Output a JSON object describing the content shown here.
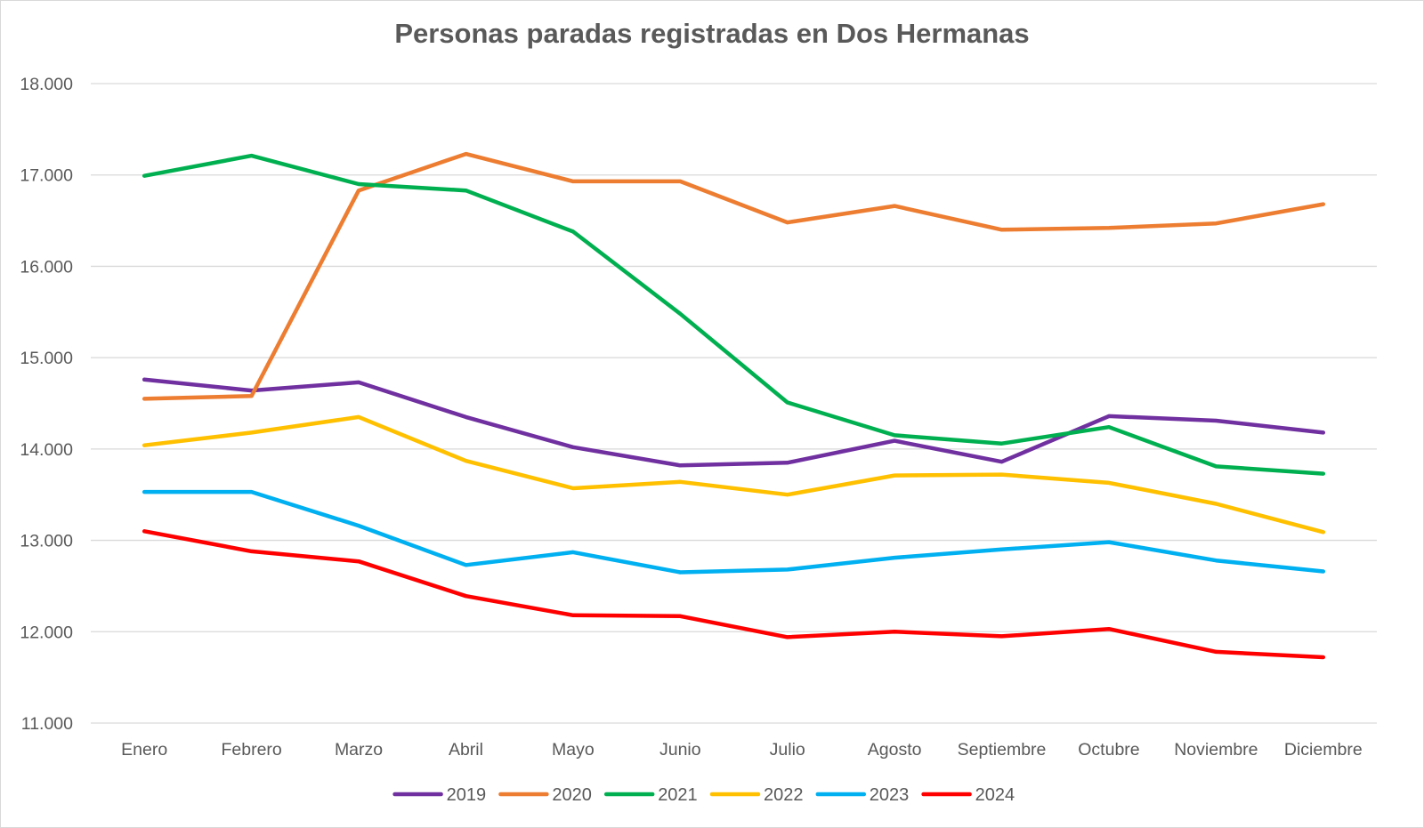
{
  "chart_data": {
    "type": "line",
    "title": "Personas paradas registradas en Dos Hermanas",
    "xlabel": "",
    "ylabel": "",
    "categories": [
      "Enero",
      "Febrero",
      "Marzo",
      "Abril",
      "Mayo",
      "Junio",
      "Julio",
      "Agosto",
      "Septiembre",
      "Octubre",
      "Noviembre",
      "Diciembre"
    ],
    "ylim": [
      11000,
      18000
    ],
    "yticks": [
      11000,
      12000,
      13000,
      14000,
      15000,
      16000,
      17000,
      18000
    ],
    "ytick_labels": [
      "11.000",
      "12.000",
      "13.000",
      "14.000",
      "15.000",
      "16.000",
      "17.000",
      "18.000"
    ],
    "grid": true,
    "legend_position": "bottom",
    "series": [
      {
        "name": "2019",
        "color": "#7030a0",
        "values": [
          14760,
          14640,
          14730,
          14350,
          14020,
          13820,
          13850,
          14090,
          13860,
          14360,
          14310,
          14180
        ]
      },
      {
        "name": "2020",
        "color": "#ed7d31",
        "values": [
          14550,
          14580,
          16830,
          17230,
          16930,
          16930,
          16480,
          16660,
          16400,
          16420,
          16470,
          16680
        ]
      },
      {
        "name": "2021",
        "color": "#00b050",
        "values": [
          16990,
          17210,
          16900,
          16830,
          16380,
          15480,
          14510,
          14150,
          14060,
          14240,
          13810,
          13730
        ]
      },
      {
        "name": "2022",
        "color": "#ffc000",
        "values": [
          14040,
          14180,
          14350,
          13870,
          13570,
          13640,
          13500,
          13710,
          13720,
          13630,
          13400,
          13090
        ]
      },
      {
        "name": "2023",
        "color": "#00b0f0",
        "values": [
          13530,
          13530,
          13160,
          12730,
          12870,
          12650,
          12680,
          12810,
          12900,
          12980,
          12780,
          12660
        ]
      },
      {
        "name": "2024",
        "color": "#ff0000",
        "values": [
          13100,
          12880,
          12770,
          12390,
          12180,
          12170,
          11940,
          12000,
          11950,
          12030,
          11780,
          11720
        ]
      }
    ]
  }
}
